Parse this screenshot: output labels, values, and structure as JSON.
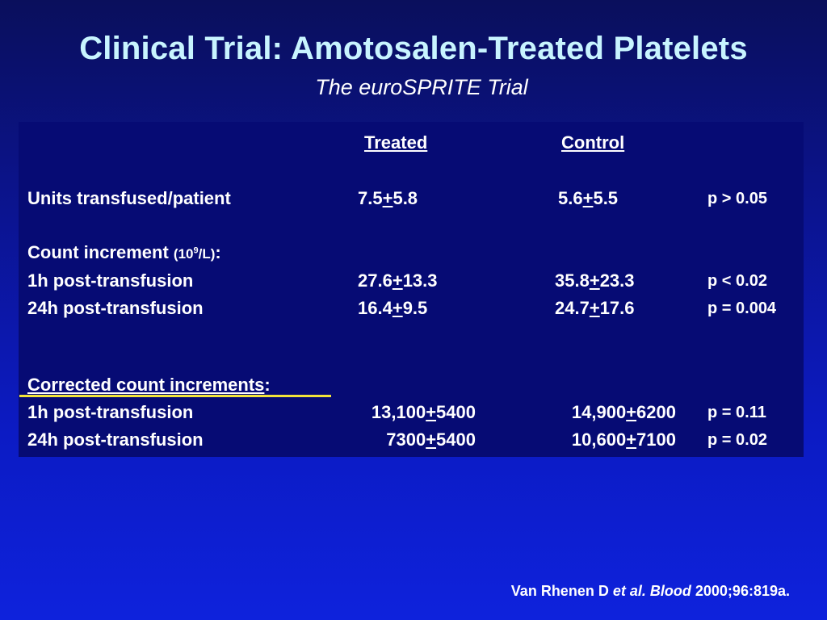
{
  "slide": {
    "title": "Clinical Trial: Amotosalen-Treated Platelets",
    "subtitle": "The euroSPRITE Trial"
  },
  "table": {
    "headers": {
      "treated": "Treated",
      "control": "Control"
    },
    "units_row": {
      "label": "Units transfused/patient",
      "treated_mean": "7.5",
      "treated_sd": "5.8",
      "control_mean": "5.6",
      "control_sd": "5.5",
      "p": "p > 0.05"
    },
    "count_increment": {
      "label": "Count increment",
      "unit_open": "(10",
      "unit_exp": "9",
      "unit_close": "/L)",
      "colon": ":",
      "rows": [
        {
          "label": "1h post-transfusion",
          "treated_mean": "27.6",
          "treated_sd": "13.3",
          "control_mean": "35.8",
          "control_sd": "23.3",
          "p": "p < 0.02"
        },
        {
          "label": "24h post-transfusion",
          "treated_mean": "16.4",
          "treated_sd": "9.5",
          "control_mean": "24.7",
          "control_sd": "17.6",
          "p": "p = 0.004"
        }
      ]
    },
    "corrected": {
      "label": "Corrected count increments",
      "colon": ":",
      "rows": [
        {
          "label": "1h post-transfusion",
          "treated_mean": "13,100",
          "treated_sd": "5400",
          "control_mean": "14,900",
          "control_sd": "6200",
          "p": "p = 0.11"
        },
        {
          "label": "24h post-transfusion",
          "treated_mean": "7300",
          "treated_sd": "5400",
          "control_mean": "10,600",
          "control_sd": "7100",
          "p": "p = 0.02"
        }
      ]
    },
    "plus_sign": "+"
  },
  "citation": {
    "authors": "Van Rhenen D ",
    "etal": "et al.",
    "journal": "Blood",
    "ref": "2000;96:819a."
  },
  "colors": {
    "title": "#c8f4ff",
    "table_bg": "#060b74",
    "highlight_line": "#f2e43a"
  }
}
